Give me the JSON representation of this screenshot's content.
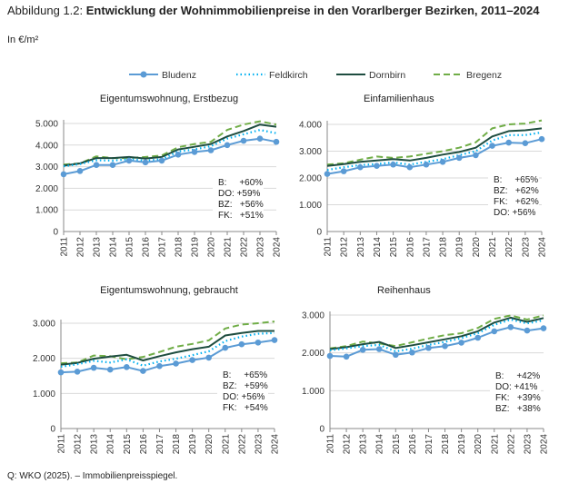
{
  "figure": {
    "label": "Abbildung 1.2:",
    "title": "Entwicklung der Wohnimmobilienpreise in den Vorarlberger Bezirken, 2011–2024",
    "unit": "In €/m²",
    "source": "Q: WKO (2025). – Immobilienpreisspiegel."
  },
  "legend": [
    {
      "name": "Bludenz",
      "color": "#5b9bd5",
      "style": "solid-markers"
    },
    {
      "name": "Feldkirch",
      "color": "#00b0f0",
      "style": "dotted"
    },
    {
      "name": "Dornbirn",
      "color": "#1e4d40",
      "style": "solid"
    },
    {
      "name": "Bregenz",
      "color": "#70ad47",
      "style": "dashed"
    }
  ],
  "chart_data": [
    {
      "type": "line",
      "title": "Eigentumswohnung, Erstbezug",
      "categories": [
        "2011",
        "2012",
        "2013",
        "2014",
        "2015",
        "2016",
        "2017",
        "2018",
        "2019",
        "2020",
        "2021",
        "2022",
        "2023",
        "2024"
      ],
      "ylim": [
        0,
        5000
      ],
      "yticks": [
        "0",
        "1.000",
        "2.000",
        "3.000",
        "4.000",
        "5.000"
      ],
      "grid": true,
      "series": [
        {
          "name": "Bludenz",
          "values": [
            2650,
            2800,
            3080,
            3080,
            3280,
            3200,
            3280,
            3560,
            3680,
            3760,
            4000,
            4200,
            4300,
            4150
          ]
        },
        {
          "name": "Feldkirch",
          "values": [
            3020,
            3120,
            3300,
            3280,
            3350,
            3280,
            3350,
            3700,
            3800,
            3950,
            4300,
            4500,
            4700,
            4550
          ]
        },
        {
          "name": "Dornbirn",
          "values": [
            3050,
            3150,
            3400,
            3400,
            3450,
            3380,
            3450,
            3800,
            3920,
            4050,
            4400,
            4650,
            4950,
            4850
          ]
        },
        {
          "name": "Bregenz",
          "values": [
            3100,
            3150,
            3480,
            3400,
            3400,
            3450,
            3520,
            3900,
            4050,
            4150,
            4700,
            4950,
            5100,
            4950
          ]
        }
      ],
      "annotations": [
        "B:     +60%",
        "DO: +59%",
        "BZ:   +56%",
        "FK:   +51%"
      ]
    },
    {
      "type": "line",
      "title": "Einfamilienhaus",
      "categories": [
        "2011",
        "2012",
        "2013",
        "2014",
        "2015",
        "2016",
        "2017",
        "2018",
        "2019",
        "2020",
        "2021",
        "2022",
        "2023",
        "2024"
      ],
      "ylim": [
        0,
        4000
      ],
      "yticks": [
        "0",
        "1.000",
        "2.000",
        "3.000",
        "4.000"
      ],
      "grid": true,
      "series": [
        {
          "name": "Bludenz",
          "values": [
            2150,
            2250,
            2400,
            2450,
            2500,
            2400,
            2500,
            2600,
            2750,
            2850,
            3200,
            3320,
            3300,
            3450
          ]
        },
        {
          "name": "Feldkirch",
          "values": [
            2300,
            2400,
            2480,
            2520,
            2580,
            2500,
            2600,
            2700,
            2850,
            3000,
            3400,
            3600,
            3600,
            3700
          ]
        },
        {
          "name": "Dornbirn",
          "values": [
            2450,
            2520,
            2600,
            2650,
            2700,
            2650,
            2750,
            2870,
            2970,
            3130,
            3550,
            3750,
            3780,
            3850
          ]
        },
        {
          "name": "Bregenz",
          "values": [
            2500,
            2550,
            2680,
            2800,
            2750,
            2800,
            2900,
            3000,
            3130,
            3330,
            3850,
            4000,
            4030,
            4150
          ]
        }
      ],
      "annotations": [
        "B:     +65%",
        "BZ:   +62%",
        "FK:   +62%",
        "DO: +56%"
      ]
    },
    {
      "type": "line",
      "title": "Eigentumswohnung, gebraucht",
      "categories": [
        "2011",
        "2012",
        "2013",
        "2014",
        "2015",
        "2016",
        "2017",
        "2018",
        "2019",
        "2020",
        "2021",
        "2022",
        "2023",
        "2024"
      ],
      "ylim": [
        0,
        3000
      ],
      "yticks": [
        "0",
        "1.000",
        "2.000",
        "3.000"
      ],
      "grid": true,
      "series": [
        {
          "name": "Bludenz",
          "values": [
            1600,
            1620,
            1730,
            1680,
            1750,
            1640,
            1780,
            1850,
            1950,
            2020,
            2300,
            2400,
            2450,
            2520
          ]
        },
        {
          "name": "Feldkirch",
          "values": [
            1760,
            1830,
            1930,
            1880,
            1970,
            1790,
            1910,
            1990,
            2090,
            2200,
            2490,
            2620,
            2700,
            2720
          ]
        },
        {
          "name": "Dornbirn",
          "values": [
            1820,
            1870,
            1990,
            2050,
            2100,
            1940,
            2060,
            2170,
            2260,
            2330,
            2650,
            2720,
            2780,
            2780
          ]
        },
        {
          "name": "Bregenz",
          "values": [
            1860,
            1880,
            2080,
            2060,
            1970,
            2040,
            2180,
            2330,
            2410,
            2510,
            2850,
            2960,
            3000,
            3050
          ]
        }
      ],
      "annotations": [
        "B:     +65%",
        "BZ:   +59%",
        "DO: +56%",
        "FK:   +54%"
      ]
    },
    {
      "type": "line",
      "title": "Reihenhaus",
      "categories": [
        "2011",
        "2012",
        "2013",
        "2014",
        "2015",
        "2016",
        "2017",
        "2018",
        "2019",
        "2020",
        "2021",
        "2022",
        "2023",
        "2024"
      ],
      "ylim": [
        0,
        3000
      ],
      "yticks": [
        "0",
        "1.000",
        "2.000",
        "3.000"
      ],
      "grid": true,
      "series": [
        {
          "name": "Bludenz",
          "values": [
            1920,
            1900,
            2080,
            2100,
            1950,
            2010,
            2130,
            2180,
            2270,
            2400,
            2570,
            2680,
            2590,
            2650
          ]
        },
        {
          "name": "Feldkirch",
          "values": [
            2070,
            2120,
            2180,
            2210,
            2040,
            2110,
            2210,
            2290,
            2390,
            2520,
            2740,
            2880,
            2780,
            2860
          ]
        },
        {
          "name": "Dornbirn",
          "values": [
            2100,
            2150,
            2230,
            2290,
            2130,
            2200,
            2280,
            2360,
            2440,
            2570,
            2800,
            2930,
            2820,
            2920
          ]
        },
        {
          "name": "Bregenz",
          "values": [
            2120,
            2180,
            2300,
            2250,
            2180,
            2280,
            2380,
            2470,
            2520,
            2660,
            2900,
            2990,
            2880,
            2990
          ]
        }
      ],
      "annotations": [
        "B:     +42%",
        "DO: +41%",
        "FK:   +39%",
        "BZ:   +38%"
      ]
    }
  ]
}
